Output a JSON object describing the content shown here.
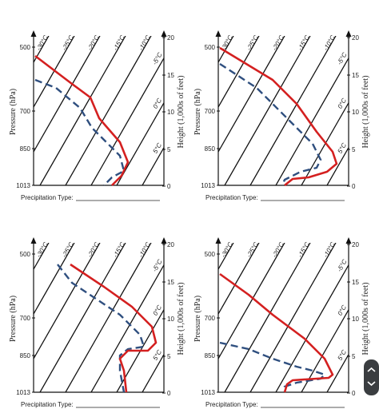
{
  "axes": {
    "pressure_title": "Pressure (hPa)",
    "height_title": "Height (1,000s of feet)",
    "pressure_labels": [
      "500",
      "700",
      "850",
      "1013"
    ],
    "height_labels": [
      "20",
      "15",
      "10",
      "5",
      "0"
    ],
    "isotherm_labels": [
      "-30°C",
      "-25°C",
      "-20°C",
      "-15°C",
      "-10°C",
      "-5°C",
      "0°C",
      "5°C"
    ]
  },
  "caption": "Precipitation Type:"
}
